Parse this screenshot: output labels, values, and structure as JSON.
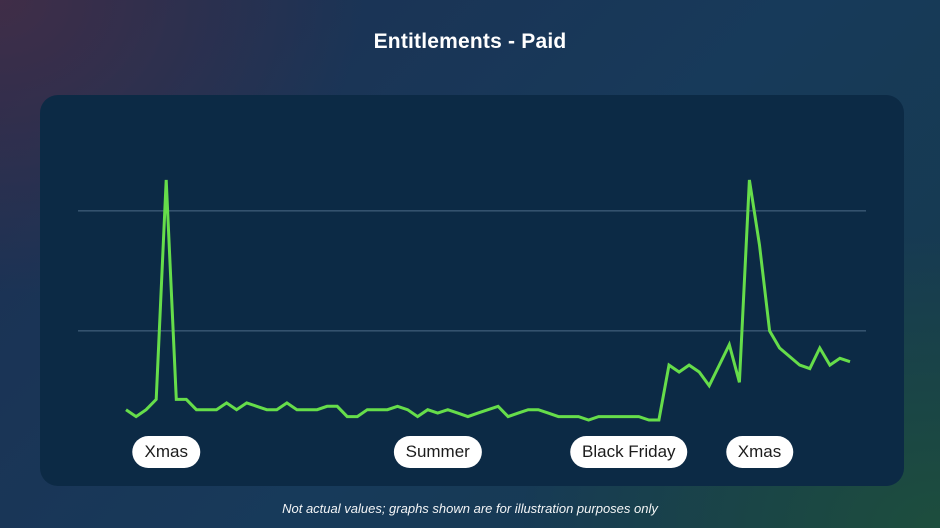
{
  "chart_data": {
    "type": "line",
    "title": "Entitlements - Paid",
    "xlabel": "",
    "ylabel": "",
    "ylim": [
      0,
      100
    ],
    "grid_y": [
      70,
      35
    ],
    "x": [
      0,
      1,
      2,
      3,
      4,
      5,
      6,
      7,
      8,
      9,
      10,
      11,
      12,
      13,
      14,
      15,
      16,
      17,
      18,
      19,
      20,
      21,
      22,
      23,
      24,
      25,
      26,
      27,
      28,
      29,
      30,
      31,
      32,
      33,
      34,
      35,
      36,
      37,
      38,
      39,
      40,
      41,
      42,
      43,
      44,
      45,
      46,
      47,
      48,
      49,
      50,
      51,
      52,
      53,
      54,
      55,
      56,
      57,
      58,
      59,
      60,
      61,
      62,
      63,
      64,
      65,
      67,
      68,
      69,
      70,
      71,
      72
    ],
    "series": [
      {
        "color": "#66dd4a",
        "values": [
          12,
          10,
          12,
          15,
          79,
          15,
          15,
          12,
          12,
          12,
          14,
          12,
          14,
          13,
          12,
          12,
          14,
          12,
          12,
          12,
          13,
          13,
          10,
          10,
          12,
          12,
          12,
          13,
          12,
          10,
          12,
          11,
          12,
          11,
          10,
          11,
          12,
          13,
          10,
          11,
          12,
          12,
          11,
          10,
          10,
          10,
          9,
          10,
          10,
          10,
          10,
          10,
          9,
          9,
          25,
          23,
          25,
          23,
          19,
          25,
          31,
          20,
          79,
          60,
          35,
          30,
          25,
          24,
          30,
          25,
          27,
          26
        ]
      }
    ],
    "annotations": [
      {
        "label": "Xmas",
        "x": 4
      },
      {
        "label": "Summer",
        "x": 31
      },
      {
        "label": "Black Friday",
        "x": 50
      },
      {
        "label": "Xmas",
        "x": 63
      }
    ],
    "footnote": "Not actual values; graphs shown are for illustration purposes only"
  }
}
